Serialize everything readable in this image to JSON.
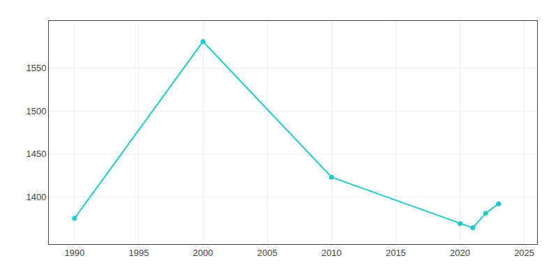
{
  "chart_data": {
    "type": "line",
    "x": [
      1990,
      2000,
      2010,
      2020,
      2021,
      2022,
      2023
    ],
    "values": [
      1375,
      1581,
      1423,
      1369,
      1364,
      1381,
      1392
    ],
    "color": "#20c8c8",
    "marker": "circle",
    "xlim": [
      1988,
      2026
    ],
    "ylim": [
      1345,
      1605
    ],
    "xticks": [
      1990,
      1995,
      2000,
      2005,
      2010,
      2015,
      2020,
      2025
    ],
    "yticks": [
      1400,
      1450,
      1500,
      1550
    ],
    "grid": true
  }
}
